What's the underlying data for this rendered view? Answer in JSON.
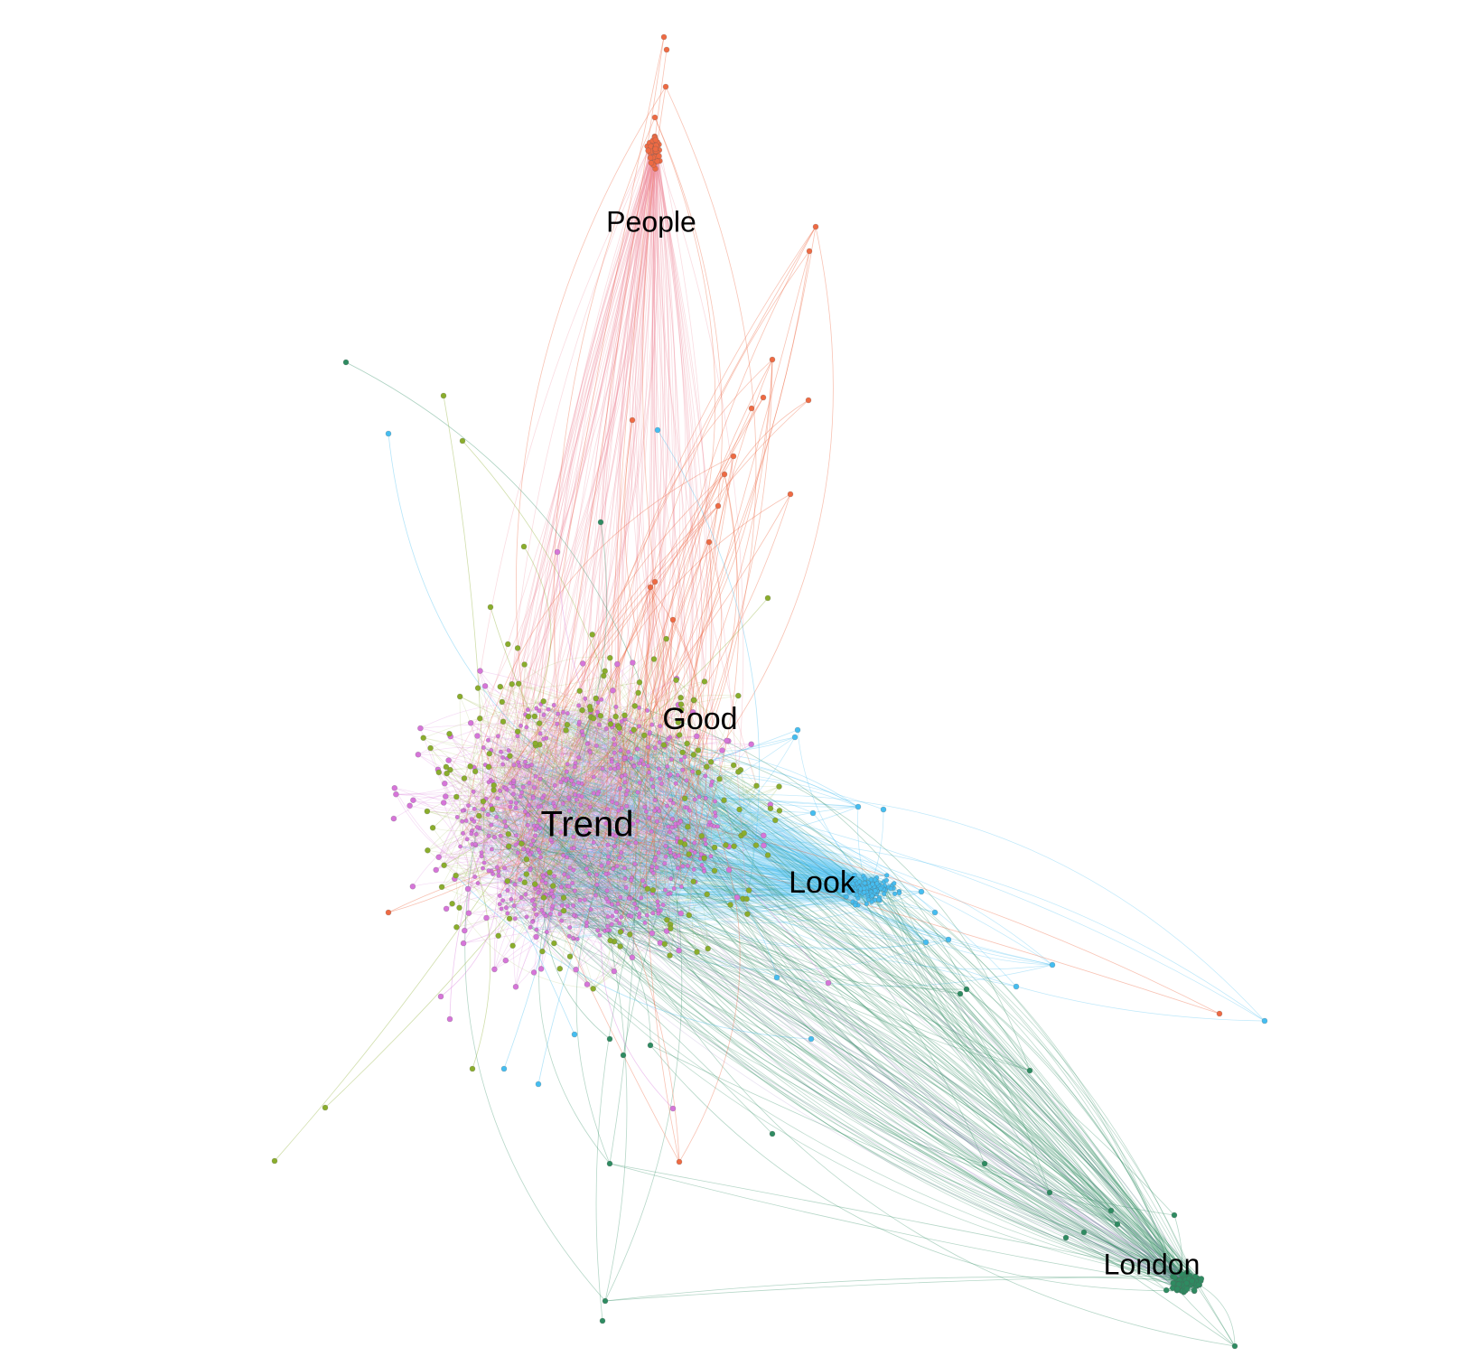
{
  "colors": {
    "background": "#ffffff",
    "trend": "#d675d9",
    "good": "#8aad2c",
    "look": "#45bdf0",
    "london": "#2e8b61",
    "people": "#ee6a43"
  },
  "clusters": [
    {
      "id": "trend",
      "label": "Trend",
      "color": "#d675d9"
    },
    {
      "id": "good",
      "label": "Good",
      "color": "#8aad2c"
    },
    {
      "id": "look",
      "label": "Look",
      "color": "#45bdf0"
    },
    {
      "id": "london",
      "label": "London",
      "color": "#2e8b61"
    },
    {
      "id": "people",
      "label": "People",
      "color": "#ee6a43"
    }
  ]
}
